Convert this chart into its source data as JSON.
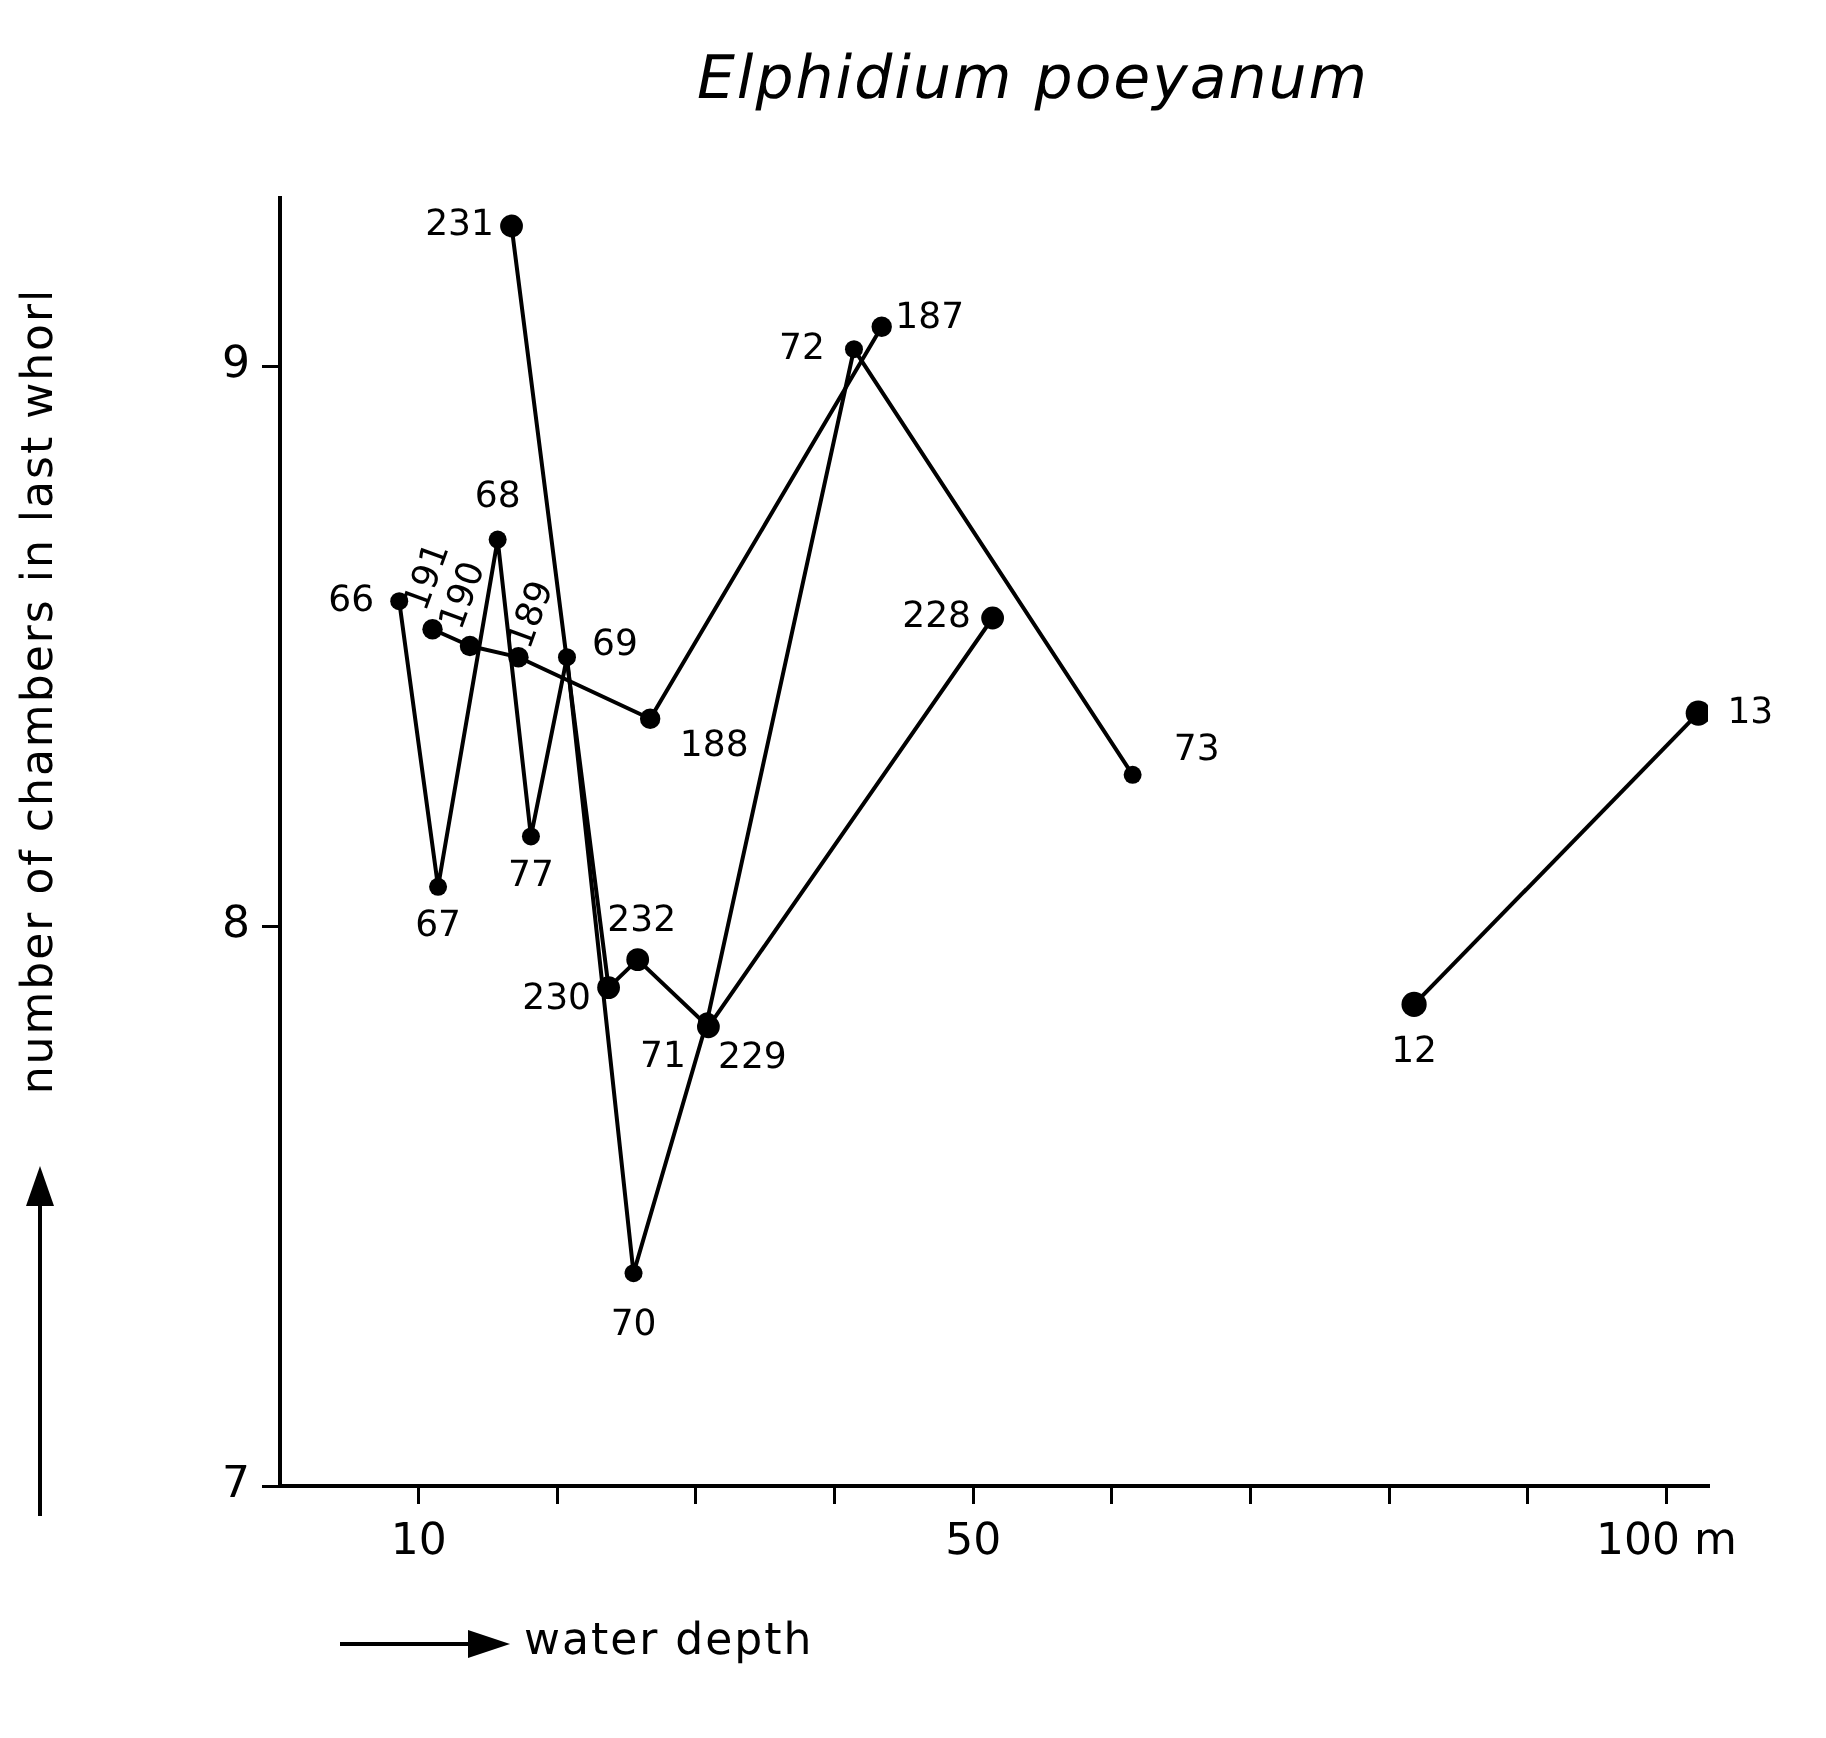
{
  "chart_data": {
    "type": "line",
    "title": "Elphidium poeyanum",
    "xlabel": "water depth",
    "ylabel": "number of chambers in last whorl",
    "xlim": [
      0,
      103
    ],
    "xticks": [
      10,
      {
        "value": 20,
        "label": null
      },
      {
        "value": 30,
        "label": null
      },
      {
        "value": 40,
        "label": null
      },
      50,
      {
        "value": 60,
        "label": null
      },
      {
        "value": 70,
        "label": null
      },
      {
        "value": 80,
        "label": null
      },
      {
        "value": 90,
        "label": null
      },
      {
        "value": 100,
        "label": "100 m"
      }
    ],
    "ylim": [
      7,
      9.3
    ],
    "yticks": [
      7,
      8,
      9
    ],
    "grid": false,
    "legend": false,
    "marker": "circle",
    "line_style": "solid",
    "series": [
      {
        "color": "#000000",
        "x": [
          8.6,
          11.4,
          15.7,
          18.1,
          20.7,
          25.5,
          30.8,
          41.4,
          61.5
        ],
        "values": [
          8.58,
          8.07,
          8.69,
          8.16,
          8.48,
          7.38,
          7.83,
          9.03,
          8.27
        ]
      },
      {
        "color": "#000000",
        "x": [
          11.0,
          13.7,
          17.2,
          26.7,
          43.4
        ],
        "values": [
          8.53,
          8.5,
          8.48,
          8.37,
          9.07
        ]
      },
      {
        "color": "#000000",
        "x": [
          16.7,
          23.7,
          25.8,
          30.9,
          51.4
        ],
        "values": [
          9.25,
          7.89,
          7.94,
          7.82,
          8.55
        ]
      },
      {
        "color": "#000000",
        "x": [
          81.8,
          102.3
        ],
        "values": [
          7.86,
          8.38
        ]
      }
    ],
    "annotations": [
      {
        "text": "66",
        "x": 8.6,
        "y": 8.58
      },
      {
        "text": "67",
        "x": 11.4,
        "y": 8.07
      },
      {
        "text": "68",
        "x": 15.7,
        "y": 8.69
      },
      {
        "text": "77",
        "x": 18.1,
        "y": 8.16
      },
      {
        "text": "69",
        "x": 20.7,
        "y": 8.48
      },
      {
        "text": "70",
        "x": 25.5,
        "y": 7.38
      },
      {
        "text": "71",
        "x": 30.8,
        "y": 7.83
      },
      {
        "text": "72",
        "x": 41.4,
        "y": 9.03
      },
      {
        "text": "73",
        "x": 61.5,
        "y": 8.27
      },
      {
        "text": "191",
        "x": 11.0,
        "y": 8.53
      },
      {
        "text": "190",
        "x": 13.7,
        "y": 8.5
      },
      {
        "text": "189",
        "x": 17.2,
        "y": 8.48
      },
      {
        "text": "188",
        "x": 26.7,
        "y": 8.37
      },
      {
        "text": "187",
        "x": 43.4,
        "y": 9.07
      },
      {
        "text": "231",
        "x": 16.7,
        "y": 9.25
      },
      {
        "text": "230",
        "x": 23.7,
        "y": 7.89
      },
      {
        "text": "232",
        "x": 25.8,
        "y": 7.94
      },
      {
        "text": "229",
        "x": 30.9,
        "y": 7.82
      },
      {
        "text": "228",
        "x": 51.4,
        "y": 8.55
      },
      {
        "text": "12",
        "x": 81.8,
        "y": 7.86
      },
      {
        "text": "13",
        "x": 102.3,
        "y": 8.38
      }
    ]
  }
}
